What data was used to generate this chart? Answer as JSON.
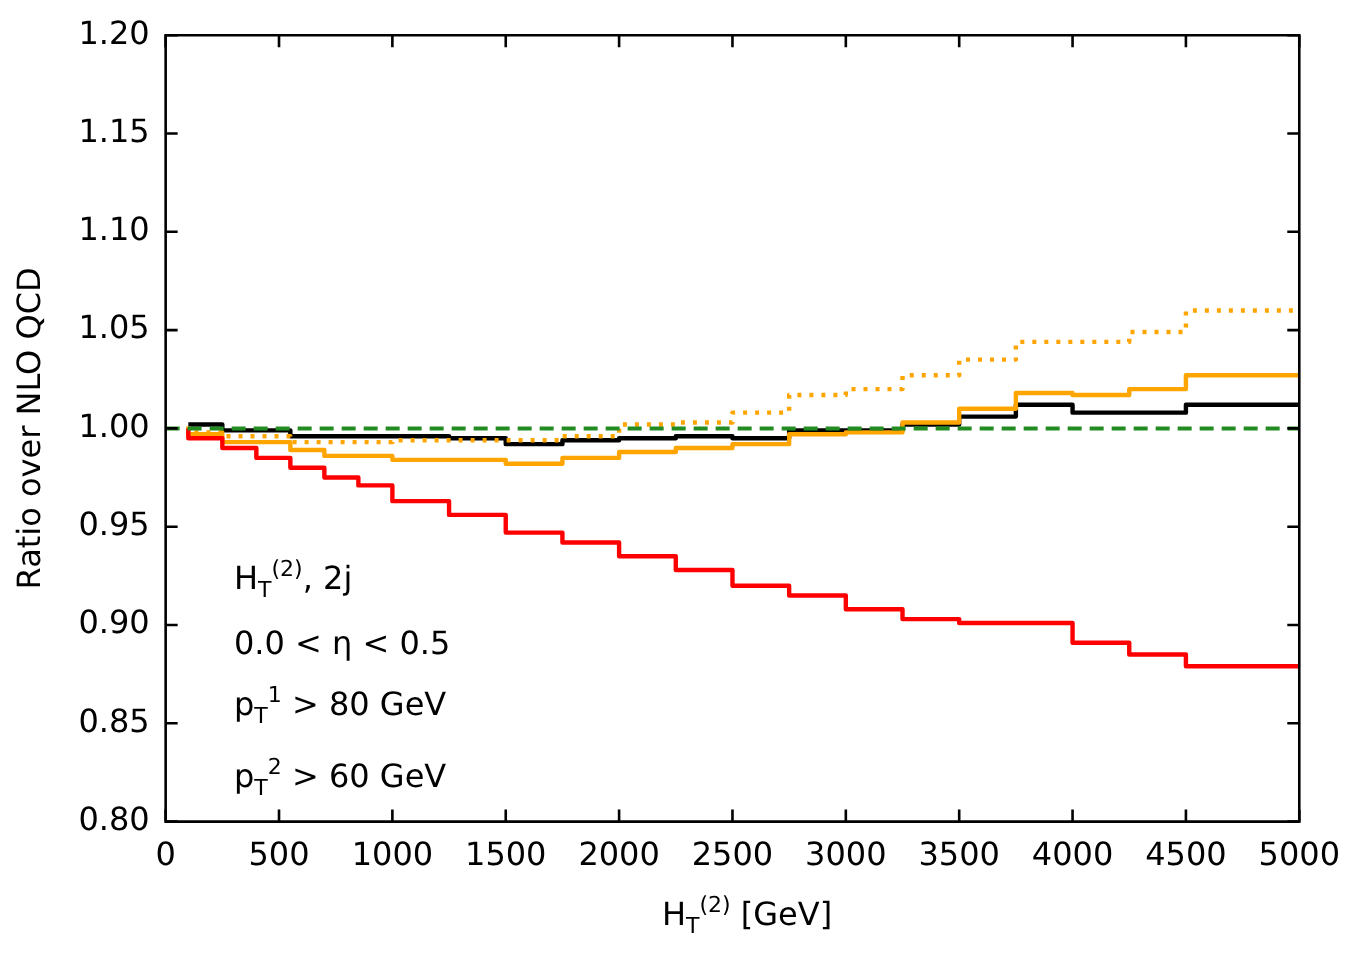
{
  "chart_data": {
    "type": "step",
    "xlabel": "H$_{T}$$^{(2)}$ [GeV]",
    "ylabel": "Ratio over NLO QCD",
    "x": [
      100,
      250,
      400,
      550,
      700,
      850,
      1000,
      1250,
      1500,
      1750,
      2000,
      2250,
      2500,
      2750,
      3000,
      3250,
      3500,
      3750,
      4000,
      4250,
      4500,
      4750,
      5000
    ],
    "series": [
      {
        "color": "#ff0000",
        "values": [
          1.0,
          0.995,
          0.99,
          0.985,
          0.98,
          0.975,
          0.971,
          0.963,
          0.956,
          0.947,
          0.942,
          0.935,
          0.928,
          0.92,
          0.915,
          0.908,
          0.903,
          0.901,
          0.901,
          0.891,
          0.885,
          0.879,
          0.879
        ]
      },
      {
        "color": "#ffa500",
        "values": [
          1.0,
          0.997,
          0.993,
          0.993,
          0.989,
          0.986,
          0.986,
          0.984,
          0.984,
          0.982,
          0.985,
          0.988,
          0.99,
          0.992,
          0.997,
          0.998,
          1.003,
          1.01,
          1.018,
          1.017,
          1.02,
          1.027,
          1.027
        ]
      },
      {
        "color": "#ffa500",
        "line_style": "dotted",
        "values": [
          1.001,
          0.998,
          0.996,
          0.996,
          0.993,
          0.993,
          0.993,
          0.994,
          0.994,
          0.994,
          0.996,
          1.002,
          1.003,
          1.008,
          1.017,
          1.02,
          1.027,
          1.035,
          1.044,
          1.044,
          1.049,
          1.06,
          1.06
        ]
      },
      {
        "color": "#000000",
        "values": [
          1.002,
          1.002,
          0.999,
          0.999,
          0.996,
          0.996,
          0.996,
          0.996,
          0.995,
          0.992,
          0.994,
          0.995,
          0.996,
          0.995,
          0.999,
          0.999,
          1.002,
          1.006,
          1.012,
          1.008,
          1.008,
          1.012,
          1.012
        ]
      }
    ],
    "ref_lines": [
      {
        "axis": "y",
        "value": 1.0,
        "color": "#228b22",
        "line_style": "dashed"
      }
    ],
    "xlim": [
      0,
      5000
    ],
    "xticks": [
      0,
      500,
      1000,
      1500,
      2000,
      2500,
      3000,
      3500,
      4000,
      4500,
      5000
    ],
    "ylim": [
      0.8,
      1.2
    ],
    "yticks": [
      {
        "value": 0.8,
        "label": "0.80"
      },
      {
        "value": 0.85,
        "label": "0.85"
      },
      {
        "value": 0.9,
        "label": "0.90"
      },
      {
        "value": 0.95,
        "label": "0.95"
      },
      {
        "value": 1.0,
        "label": "1.00"
      },
      {
        "value": 1.05,
        "label": "1.05"
      },
      {
        "value": 1.1,
        "label": "1.10"
      },
      {
        "value": 1.15,
        "label": "1.15"
      },
      {
        "value": 1.2,
        "label": "1.20"
      }
    ],
    "annotations": [
      "H$_{T}$$^{(2)}$, 2j",
      "0.0 < η < 0.5",
      "p$_{T}$$^{1}$ > 80 GeV",
      "p$_{T}$$^{2}$ > 60 GeV"
    ],
    "legend": false
  }
}
